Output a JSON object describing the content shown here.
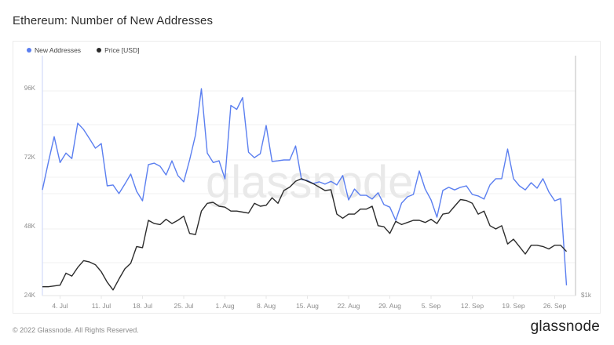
{
  "header": {
    "title": "Ethereum: Number of New Addresses"
  },
  "legend": [
    {
      "label": "New Addresses",
      "color": "#5b7ff0"
    },
    {
      "label": "Price [USD]",
      "color": "#2b2b2b"
    }
  ],
  "watermark": "glassnode",
  "footer": {
    "copyright": "© 2022 Glassnode. All Rights Reserved.",
    "logo": "glassnode"
  },
  "chart_data": {
    "type": "line",
    "title": "Ethereum: Number of New Addresses",
    "xlabel": "",
    "ylabel": "New Addresses",
    "y2label": "Price [USD]",
    "ylim": [
      24000,
      104000
    ],
    "y_ticks": [
      "24K",
      "48K",
      "72K",
      "96K"
    ],
    "y_tick_values": [
      24000,
      48000,
      72000,
      96000
    ],
    "y2_scale": "log",
    "y2_ticks": [
      "$1k"
    ],
    "x_ticks": [
      "4. Jul",
      "11. Jul",
      "18. Jul",
      "25. Jul",
      "1. Aug",
      "8. Aug",
      "15. Aug",
      "22. Aug",
      "29. Aug",
      "5. Sep",
      "12. Sep",
      "19. Sep",
      "26. Sep"
    ],
    "x_start": "2022-07-01",
    "x_end": "2022-09-29",
    "grid": true,
    "legend_position": "top-left",
    "series": [
      {
        "name": "New Addresses",
        "color": "#5b7ff0",
        "axis": "left",
        "values": [
          60500,
          70000,
          79000,
          70000,
          73300,
          71400,
          83700,
          81500,
          78300,
          75000,
          76600,
          61900,
          62200,
          59200,
          62500,
          66000,
          60000,
          56700,
          69300,
          69800,
          68700,
          65700,
          70600,
          65500,
          63300,
          70900,
          79600,
          95700,
          73300,
          70000,
          70600,
          64300,
          89900,
          88500,
          92600,
          73600,
          71700,
          73100,
          82900,
          70400,
          70600,
          70900,
          70900,
          75800,
          64100,
          63800,
          62700,
          63300,
          62500,
          63500,
          62200,
          65500,
          57000,
          60800,
          58600,
          58600,
          57300,
          59500,
          55400,
          54500,
          49900,
          55900,
          58100,
          58900,
          67100,
          60800,
          57000,
          51000,
          60300,
          61400,
          60500,
          61400,
          61900,
          58900,
          58400,
          57300,
          62200,
          64400,
          64400,
          74700,
          64400,
          61900,
          60500,
          63000,
          61100,
          64400,
          59800,
          56700,
          57500,
          27300
        ]
      },
      {
        "name": "Price [USD]",
        "color": "#2b2b2b",
        "axis": "right",
        "values": [
          1050,
          1050,
          1055,
          1060,
          1140,
          1120,
          1180,
          1230,
          1220,
          1200,
          1150,
          1080,
          1030,
          1100,
          1170,
          1210,
          1340,
          1330,
          1570,
          1540,
          1530,
          1580,
          1540,
          1570,
          1610,
          1450,
          1440,
          1660,
          1740,
          1750,
          1710,
          1700,
          1660,
          1660,
          1650,
          1640,
          1740,
          1710,
          1720,
          1800,
          1740,
          1880,
          1920,
          1990,
          2020,
          1990,
          1960,
          1920,
          1880,
          1890,
          1630,
          1590,
          1630,
          1630,
          1680,
          1680,
          1710,
          1520,
          1510,
          1450,
          1560,
          1530,
          1550,
          1570,
          1570,
          1550,
          1580,
          1540,
          1630,
          1640,
          1710,
          1780,
          1770,
          1740,
          1630,
          1660,
          1520,
          1490,
          1520,
          1360,
          1400,
          1340,
          1280,
          1350,
          1350,
          1340,
          1320,
          1350,
          1350,
          1300
        ]
      }
    ]
  }
}
